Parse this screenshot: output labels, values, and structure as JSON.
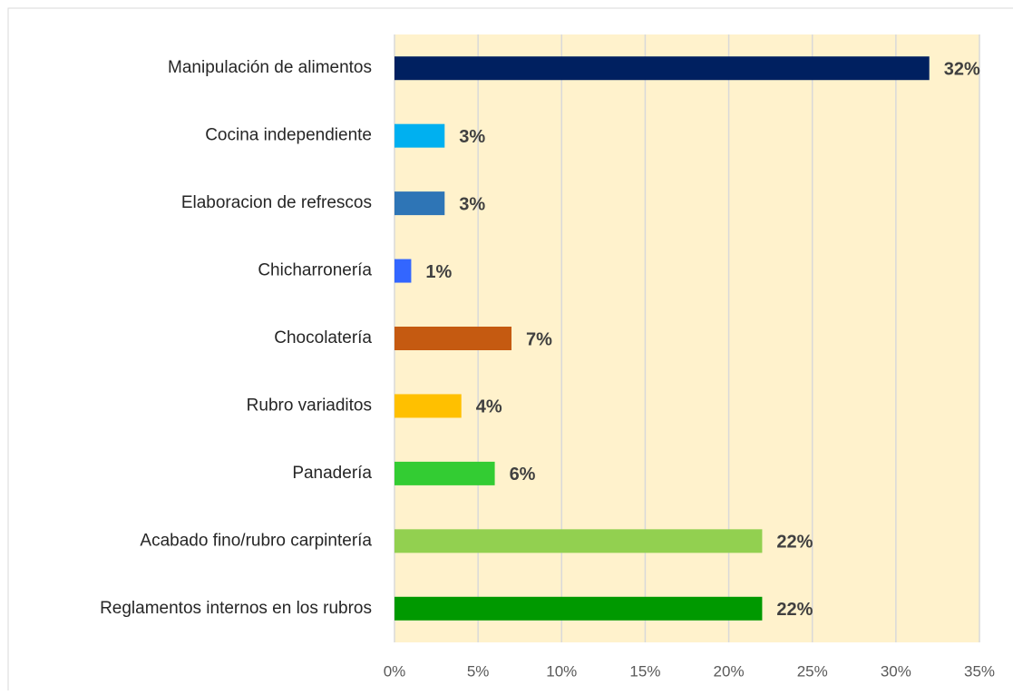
{
  "chart_data": {
    "type": "bar",
    "orientation": "horizontal",
    "categories": [
      "Manipulación de alimentos",
      "Cocina independiente",
      "Elaboracion de refrescos",
      "Chicharronería",
      "Chocolatería",
      "Rubro variaditos",
      "Panadería",
      "Acabado fino/rubro carpintería",
      "Reglamentos internos en los rubros"
    ],
    "values": [
      32,
      3,
      3,
      1,
      7,
      4,
      6,
      22,
      22
    ],
    "value_labels": [
      "32%",
      "3%",
      "3%",
      "1%",
      "7%",
      "4%",
      "6%",
      "22%",
      "22%"
    ],
    "colors": [
      "#002060",
      "#00b0f0",
      "#2e75b6",
      "#3366ff",
      "#c55a11",
      "#ffc000",
      "#33cc33",
      "#92d050",
      "#009900"
    ],
    "xlim": [
      0,
      35
    ],
    "xticks": [
      {
        "value": 0,
        "label": "0%"
      },
      {
        "value": 5,
        "label": "5%"
      },
      {
        "value": 10,
        "label": "10%"
      },
      {
        "value": 15,
        "label": "15%"
      },
      {
        "value": 20,
        "label": "20%"
      },
      {
        "value": 25,
        "label": "25%"
      },
      {
        "value": 30,
        "label": "30%"
      },
      {
        "value": 35,
        "label": "35%"
      }
    ],
    "grid": true,
    "plot_background": "#fff2cc"
  }
}
